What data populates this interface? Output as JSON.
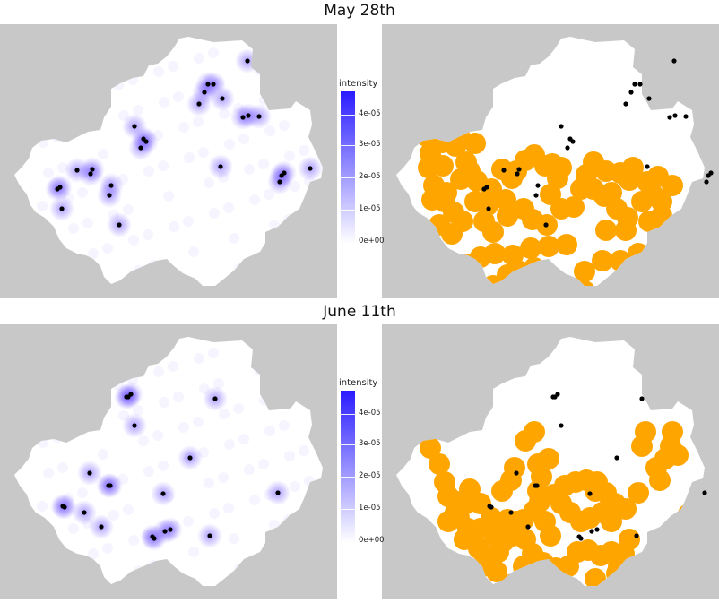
{
  "colors": {
    "panel_bg": "#c8c8c8",
    "region_fill": "#ffffff",
    "density": "#6a4cff",
    "buffer": "#FFA500",
    "point": "#000000"
  },
  "sections": [
    {
      "title": "May 28th",
      "legend": {
        "title": "intensity",
        "ticks": [
          "4e-05",
          "3e-05",
          "2e-05",
          "1e-05",
          "0e+00"
        ]
      },
      "points": [
        [
          276,
          68
        ],
        [
          232,
          94
        ],
        [
          238,
          94
        ],
        [
          228,
          103
        ],
        [
          248,
          110
        ],
        [
          222,
          116
        ],
        [
          277,
          129
        ],
        [
          271,
          131
        ],
        [
          289,
          130
        ],
        [
          150,
          141
        ],
        [
          160,
          155
        ],
        [
          163,
          158
        ],
        [
          157,
          165
        ],
        [
          246,
          186
        ],
        [
          86,
          190
        ],
        [
          103,
          189
        ],
        [
          101,
          194
        ],
        [
          124,
          207
        ],
        [
          122,
          218
        ],
        [
          67,
          209
        ],
        [
          64,
          211
        ],
        [
          69,
          233
        ],
        [
          133,
          251
        ],
        [
          317,
          193
        ],
        [
          314,
          196
        ],
        [
          312,
          203
        ],
        [
          346,
          188
        ]
      ],
      "buffers": [
        [
          0,
          45
        ],
        [
          4,
          64
        ],
        [
          2,
          80
        ],
        [
          10,
          112
        ],
        [
          17,
          52
        ],
        [
          32,
          56
        ],
        [
          36,
          43
        ],
        [
          28,
          50
        ],
        [
          54,
          53
        ],
        [
          6,
          72
        ],
        [
          18,
          78
        ],
        [
          22,
          108
        ],
        [
          38,
          93
        ],
        [
          44,
          74
        ],
        [
          48,
          84
        ],
        [
          56,
          95
        ],
        [
          72,
          104
        ],
        [
          84,
          82
        ],
        [
          95,
          92
        ],
        [
          100,
          84
        ],
        [
          110,
          72
        ],
        [
          120,
          66
        ],
        [
          132,
          78
        ],
        [
          138,
          110
        ],
        [
          146,
          92
        ],
        [
          150,
          80
        ],
        [
          140,
          76
        ],
        [
          8,
          100
        ],
        [
          6,
          116
        ],
        [
          20,
          118
        ],
        [
          30,
          130
        ],
        [
          40,
          140
        ],
        [
          14,
          144
        ],
        [
          28,
          154
        ],
        [
          54,
          118
        ],
        [
          68,
          122
        ],
        [
          64,
          140
        ],
        [
          74,
          152
        ],
        [
          90,
          134
        ],
        [
          88,
          116
        ],
        [
          108,
          126
        ],
        [
          118,
          138
        ],
        [
          134,
          144
        ],
        [
          150,
          126
        ],
        [
          164,
          124
        ],
        [
          172,
          104
        ],
        [
          186,
          104
        ],
        [
          198,
          112
        ],
        [
          206,
          108
        ],
        [
          212,
          126
        ],
        [
          224,
          136
        ],
        [
          240,
          118
        ],
        [
          252,
          110
        ],
        [
          258,
          90
        ],
        [
          246,
          96
        ],
        [
          226,
          94
        ],
        [
          230,
          80
        ],
        [
          216,
          86
        ],
        [
          200,
          84
        ],
        [
          186,
          74
        ],
        [
          178,
          88
        ],
        [
          200,
          150
        ],
        [
          222,
          150
        ],
        [
          262,
          118
        ],
        [
          274,
          100
        ],
        [
          248,
          140
        ],
        [
          262,
          134
        ],
        [
          264,
          156
        ],
        [
          284,
          162
        ],
        [
          290,
          144
        ],
        [
          296,
          152
        ],
        [
          300,
          164
        ],
        [
          306,
          180
        ],
        [
          272,
          176
        ],
        [
          256,
          176
        ],
        [
          236,
          176
        ],
        [
          216,
          184
        ],
        [
          196,
          184
        ],
        [
          176,
          196
        ],
        [
          156,
          166
        ],
        [
          136,
          168
        ],
        [
          116,
          170
        ],
        [
          96,
          178
        ],
        [
          76,
          176
        ],
        [
          60,
          180
        ],
        [
          46,
          188
        ],
        [
          34,
          196
        ],
        [
          30,
          210
        ],
        [
          50,
          212
        ],
        [
          74,
          212
        ],
        [
          90,
          200
        ],
        [
          104,
          196
        ],
        [
          120,
          192
        ],
        [
          132,
          220
        ],
        [
          140,
          206
        ],
        [
          160,
          214
        ],
        [
          176,
          218
        ],
        [
          192,
          226
        ],
        [
          210,
          220
        ],
        [
          226,
          226
        ],
        [
          238,
          210
        ],
        [
          262,
          206
        ],
        [
          282,
          208
        ],
        [
          300,
          220
        ],
        [
          300,
          236
        ],
        [
          310,
          248
        ],
        [
          318,
          234
        ]
      ]
    },
    {
      "title": "June 11th",
      "legend": {
        "title": "intensity",
        "ticks": [
          "4e-05",
          "3e-05",
          "2e-05",
          "1e-05",
          "0e+00"
        ]
      },
      "points": [
        [
          143,
          443
        ],
        [
          141,
          443
        ],
        [
          146,
          440
        ],
        [
          240,
          445
        ],
        [
          150,
          475
        ],
        [
          212,
          511
        ],
        [
          100,
          528
        ],
        [
          121,
          542
        ],
        [
          123,
          542
        ],
        [
          182,
          551
        ],
        [
          310,
          550
        ],
        [
          72,
          566
        ],
        [
          94,
          572
        ],
        [
          113,
          588
        ],
        [
          170,
          599
        ],
        [
          172,
          601
        ],
        [
          184,
          593
        ],
        [
          190,
          591
        ],
        [
          234,
          598
        ],
        [
          70,
          565
        ]
      ],
      "buffers": [
        [
          0,
          443
        ],
        [
          4,
          458
        ],
        [
          14,
          476
        ],
        [
          20,
          496
        ],
        [
          24,
          512
        ],
        [
          32,
          530
        ],
        [
          46,
          548
        ],
        [
          58,
          570
        ],
        [
          70,
          584
        ],
        [
          80,
          574
        ],
        [
          96,
          556
        ],
        [
          108,
          538
        ],
        [
          120,
          528
        ],
        [
          126,
          518
        ],
        [
          124,
          506
        ],
        [
          142,
          510
        ],
        [
          154,
          500
        ],
        [
          166,
          496
        ],
        [
          178,
          494
        ],
        [
          190,
          496
        ],
        [
          200,
          508
        ],
        [
          210,
          520
        ],
        [
          222,
          526
        ],
        [
          236,
          508
        ],
        [
          240,
          456
        ],
        [
          244,
          440
        ],
        [
          256,
          480
        ],
        [
          260,
          494
        ],
        [
          266,
          470
        ],
        [
          272,
          456
        ],
        [
          274,
          440
        ],
        [
          280,
          466
        ],
        [
          110,
          450
        ],
        [
          120,
          440
        ],
        [
          124,
          476
        ],
        [
          128,
          490
        ],
        [
          136,
          470
        ],
        [
          150,
          520
        ],
        [
          160,
          530
        ],
        [
          172,
          540
        ],
        [
          182,
          536
        ],
        [
          196,
          530
        ],
        [
          206,
          540
        ],
        [
          188,
          506
        ],
        [
          132,
          540
        ],
        [
          138,
          556
        ],
        [
          34,
          518
        ],
        [
          36,
          536
        ],
        [
          44,
          520
        ],
        [
          48,
          504
        ],
        [
          60,
          520
        ],
        [
          72,
          536
        ],
        [
          84,
          506
        ],
        [
          94,
          494
        ],
        [
          98,
          480
        ],
        [
          24,
          540
        ],
        [
          42,
          560
        ],
        [
          60,
          548
        ],
        [
          76,
          556
        ],
        [
          90,
          538
        ],
        [
          100,
          540
        ],
        [
          110,
          560
        ],
        [
          118,
          576
        ],
        [
          108,
          590
        ],
        [
          116,
          604
        ],
        [
          130,
          586
        ],
        [
          144,
          592
        ],
        [
          158,
          590
        ],
        [
          168,
          574
        ],
        [
          180,
          572
        ],
        [
          194,
          578
        ],
        [
          206,
          574
        ],
        [
          214,
          590
        ],
        [
          220,
          576
        ],
        [
          226,
          560
        ],
        [
          292,
          532
        ],
        [
          302,
          520
        ],
        [
          312,
          540
        ],
        [
          320,
          556
        ],
        [
          328,
          538
        ],
        [
          336,
          524
        ],
        [
          342,
          512
        ],
        [
          346,
          508
        ],
        [
          86,
          562
        ],
        [
          62,
          590
        ],
        [
          78,
          596
        ],
        [
          96,
          610
        ],
        [
          110,
          626
        ],
        [
          150,
          614
        ],
        [
          188,
          604
        ],
        [
          212,
          598
        ]
      ]
    }
  ]
}
